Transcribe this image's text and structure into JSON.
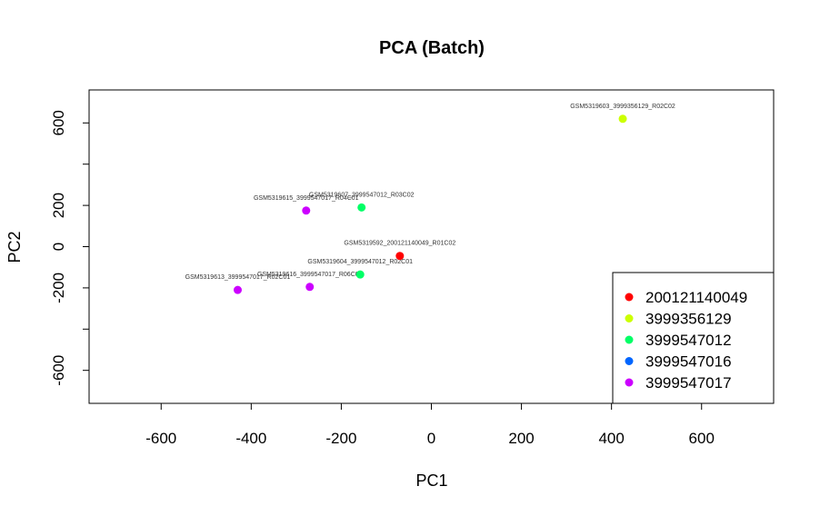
{
  "chart_data": {
    "type": "scatter",
    "title": "PCA (Batch)",
    "xlabel": "PC1",
    "ylabel": "PC2",
    "xlim": [
      -760,
      760
    ],
    "ylim": [
      -760,
      760
    ],
    "xticks": [
      -600,
      -400,
      -200,
      0,
      200,
      400,
      600
    ],
    "yticks": [
      -600,
      -400,
      -200,
      0,
      200,
      400,
      600
    ],
    "ytick_labels": [
      "-600",
      "",
      "-200",
      "0",
      "200",
      "",
      "600"
    ],
    "legend_position": "bottom-right",
    "series": [
      {
        "name": "200121140049",
        "color": "#ff0000",
        "points": [
          {
            "x": -70,
            "y": -45,
            "label": "GSM5319592_200121140049_R01C02"
          }
        ]
      },
      {
        "name": "3999356129",
        "color": "#ccff00",
        "points": [
          {
            "x": 425,
            "y": 620,
            "label": "GSM5319603_3999356129_R02C02"
          }
        ]
      },
      {
        "name": "3999547012",
        "color": "#00ff66",
        "points": [
          {
            "x": -155,
            "y": 190,
            "label": "GSM5319607_3999547012_R03C02"
          },
          {
            "x": -158,
            "y": -135,
            "label": "GSM5319604_3999547012_R02C01"
          }
        ]
      },
      {
        "name": "3999547016",
        "color": "#0066ff",
        "points": []
      },
      {
        "name": "3999547017",
        "color": "#cc00ff",
        "points": [
          {
            "x": -278,
            "y": 175,
            "label": "GSM5319615_3999547017_R04C01"
          },
          {
            "x": -430,
            "y": -210,
            "label": "GSM5319613_3999547017_R02C01"
          },
          {
            "x": -270,
            "y": -195,
            "label": "GSM5319616_3999547017_R06C01"
          }
        ]
      }
    ]
  }
}
